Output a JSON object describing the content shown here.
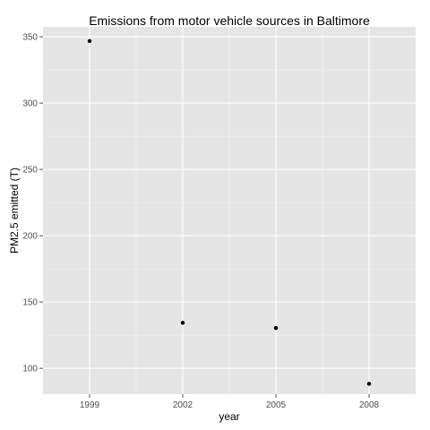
{
  "chart_data": {
    "type": "scatter",
    "title": "Emissions from  motor vehicle sources in Baltimore",
    "xlabel": "year",
    "ylabel": "PM2.5 emitted (T)",
    "x_ticks": [
      "1999",
      "2002",
      "2005",
      "2008"
    ],
    "y_ticks": [
      "100",
      "150",
      "200",
      "250",
      "300",
      "350"
    ],
    "xlim": [
      1997.5,
      2009.5
    ],
    "ylim": [
      80.5,
      357.5
    ],
    "grid": true,
    "legend": "none",
    "series": [
      {
        "x": [
          1999,
          2002,
          2005,
          2008
        ],
        "y": [
          346.8,
          134.3,
          130.4,
          88.3
        ]
      }
    ],
    "colors": {
      "panel_background": "#e5e5e5",
      "grid_major": "#ffffff",
      "grid_minor": "#f2f2f2",
      "point": "#000000",
      "tick_text": "#4d4d4d"
    }
  }
}
